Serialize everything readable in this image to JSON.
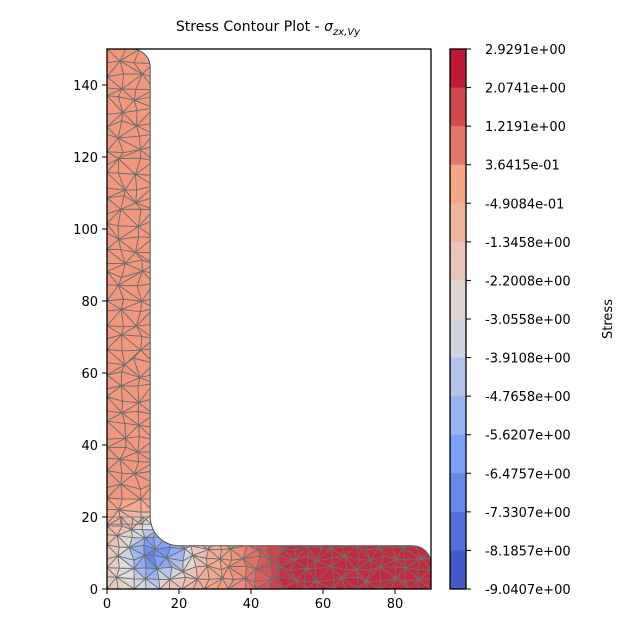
{
  "chart_data": {
    "type": "heatmap",
    "title": "Stress Contour Plot - ",
    "title_symbol": "σ",
    "title_subscript": "zx,Vy",
    "xlabel": "",
    "ylabel": "",
    "xlim": [
      0,
      90
    ],
    "ylim": [
      0,
      150
    ],
    "xticks": [
      0,
      20,
      40,
      60,
      80
    ],
    "yticks": [
      0,
      20,
      40,
      60,
      80,
      100,
      120,
      140
    ],
    "colorbar": {
      "label": "Stress",
      "colormap": "coolwarm",
      "range": [
        -9.0407,
        2.9291
      ],
      "tick_labels": [
        "2.9291e+00",
        "2.0741e+00",
        "1.2191e+00",
        "3.6415e-01",
        "-4.9084e-01",
        "-1.3458e+00",
        "-2.2008e+00",
        "-3.0558e+00",
        "-3.9108e+00",
        "-4.7658e+00",
        "-5.6207e+00",
        "-6.4757e+00",
        "-7.3307e+00",
        "-8.1857e+00",
        "-9.0407e+00"
      ],
      "tick_values": [
        2.9291,
        2.0741,
        1.2191,
        0.36415,
        -0.49084,
        -1.3458,
        -2.2008,
        -3.0558,
        -3.9108,
        -4.7658,
        -5.6207,
        -6.4757,
        -7.3307,
        -8.1857,
        -9.0407
      ]
    },
    "geometry": {
      "shape": "angle section (L)",
      "vertical_leg": {
        "x": [
          0,
          12
        ],
        "y": [
          0,
          150
        ]
      },
      "horizontal_leg": {
        "x": [
          0,
          90
        ],
        "y": [
          0,
          12
        ]
      },
      "root_radius": 8,
      "toe_radius": 5
    },
    "stress_regions": [
      {
        "region": "vertical leg",
        "y_range": [
          25,
          150
        ],
        "value": 0.2
      },
      {
        "region": "root fillet",
        "x_range": [
          8,
          22
        ],
        "y_range": [
          4,
          16
        ],
        "value": -6.5
      },
      {
        "region": "horizontal leg near toe",
        "x_range": [
          48,
          85
        ],
        "y_range": [
          0,
          12
        ],
        "value": 2.2
      }
    ]
  }
}
